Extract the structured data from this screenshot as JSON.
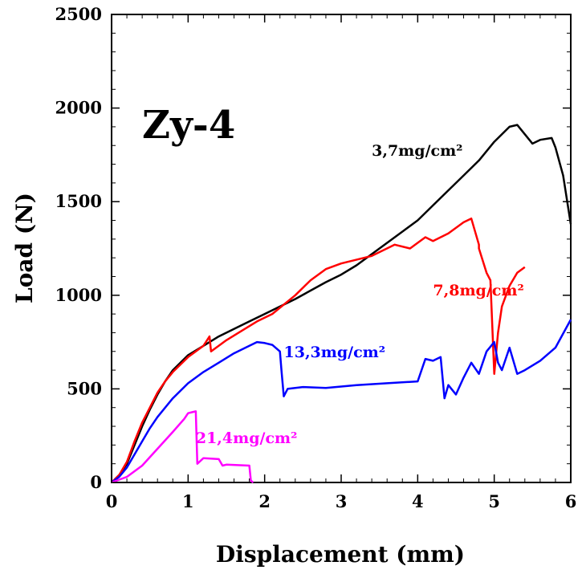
{
  "chart_data": {
    "type": "line",
    "title": "Zy-4",
    "xlabel": "Displacement (mm)",
    "ylabel": "Load (N)",
    "xlim": [
      0,
      6
    ],
    "ylim": [
      0,
      2500
    ],
    "xticks": [
      0,
      1,
      2,
      3,
      4,
      5,
      6
    ],
    "yticks": [
      0,
      500,
      1000,
      1500,
      2000,
      2500
    ],
    "grid": false,
    "legend": "inline labels",
    "series": [
      {
        "name": "3,7mg/cm²",
        "color": "#000000",
        "x": [
          0,
          0.1,
          0.2,
          0.3,
          0.4,
          0.5,
          0.6,
          0.7,
          0.8,
          0.9,
          1.0,
          1.2,
          1.4,
          1.6,
          1.8,
          2.0,
          2.4,
          2.8,
          3.0,
          3.2,
          3.5,
          3.8,
          4.0,
          4.3,
          4.6,
          4.8,
          5.0,
          5.2,
          5.3,
          5.5,
          5.6,
          5.75,
          5.8,
          5.9,
          6.0
        ],
        "y": [
          0,
          40,
          100,
          200,
          300,
          390,
          470,
          540,
          600,
          640,
          680,
          730,
          780,
          820,
          860,
          900,
          980,
          1070,
          1110,
          1160,
          1250,
          1340,
          1400,
          1520,
          1640,
          1720,
          1820,
          1900,
          1910,
          1810,
          1830,
          1840,
          1790,
          1640,
          1380
        ]
      },
      {
        "name": "7,8mg/cm²",
        "color": "#ff0000",
        "x": [
          0,
          0.1,
          0.2,
          0.3,
          0.4,
          0.5,
          0.6,
          0.7,
          0.8,
          0.9,
          1.0,
          1.1,
          1.2,
          1.28,
          1.3,
          1.5,
          1.7,
          1.9,
          2.1,
          2.4,
          2.6,
          2.8,
          3.0,
          3.4,
          3.7,
          3.9,
          4.0,
          4.1,
          4.2,
          4.4,
          4.6,
          4.7,
          4.8,
          4.8,
          4.9,
          4.95,
          5.0,
          5.05,
          5.1,
          5.2,
          5.3,
          5.4
        ],
        "y": [
          0,
          40,
          110,
          220,
          320,
          400,
          480,
          540,
          590,
          630,
          670,
          700,
          730,
          780,
          700,
          760,
          810,
          860,
          900,
          1000,
          1080,
          1140,
          1170,
          1210,
          1270,
          1250,
          1280,
          1310,
          1290,
          1330,
          1390,
          1410,
          1270,
          1250,
          1120,
          1080,
          580,
          800,
          940,
          1050,
          1120,
          1150
        ]
      },
      {
        "name": "13,3mg/cm²",
        "color": "#0000ff",
        "x": [
          0,
          0.1,
          0.2,
          0.3,
          0.4,
          0.5,
          0.6,
          0.8,
          1.0,
          1.2,
          1.4,
          1.6,
          1.8,
          1.9,
          2.0,
          2.1,
          2.2,
          2.22,
          2.25,
          2.3,
          2.5,
          2.8,
          3.2,
          3.6,
          4.0,
          4.1,
          4.2,
          4.3,
          4.35,
          4.4,
          4.5,
          4.6,
          4.7,
          4.8,
          4.9,
          5.0,
          5.05,
          5.1,
          5.2,
          5.3,
          5.4,
          5.6,
          5.8,
          6.0
        ],
        "y": [
          0,
          30,
          80,
          150,
          220,
          290,
          350,
          450,
          530,
          590,
          640,
          690,
          730,
          750,
          745,
          735,
          700,
          600,
          460,
          500,
          510,
          505,
          520,
          530,
          540,
          660,
          650,
          670,
          450,
          520,
          470,
          560,
          640,
          580,
          700,
          750,
          640,
          600,
          720,
          580,
          600,
          650,
          720,
          870
        ]
      },
      {
        "name": "21,4mg/cm²",
        "color": "#ff00ff",
        "x": [
          0,
          0.2,
          0.4,
          0.6,
          0.8,
          0.95,
          1.0,
          1.05,
          1.1,
          1.12,
          1.2,
          1.4,
          1.45,
          1.5,
          1.8,
          1.82,
          1.85
        ],
        "y": [
          0,
          30,
          90,
          180,
          270,
          340,
          370,
          375,
          380,
          100,
          130,
          125,
          90,
          95,
          90,
          10,
          0
        ]
      }
    ],
    "annotations": [
      {
        "text": "3,7mg/cm²",
        "x": 3.4,
        "y": 1745,
        "color": "#000000"
      },
      {
        "text": "7,8mg/cm²",
        "x": 4.2,
        "y": 1000,
        "color": "#ff0000"
      },
      {
        "text": "13,3mg/cm²",
        "x": 2.25,
        "y": 670,
        "color": "#0000ff"
      },
      {
        "text": "21,4mg/cm²",
        "x": 1.1,
        "y": 210,
        "color": "#ff00ff"
      }
    ]
  }
}
